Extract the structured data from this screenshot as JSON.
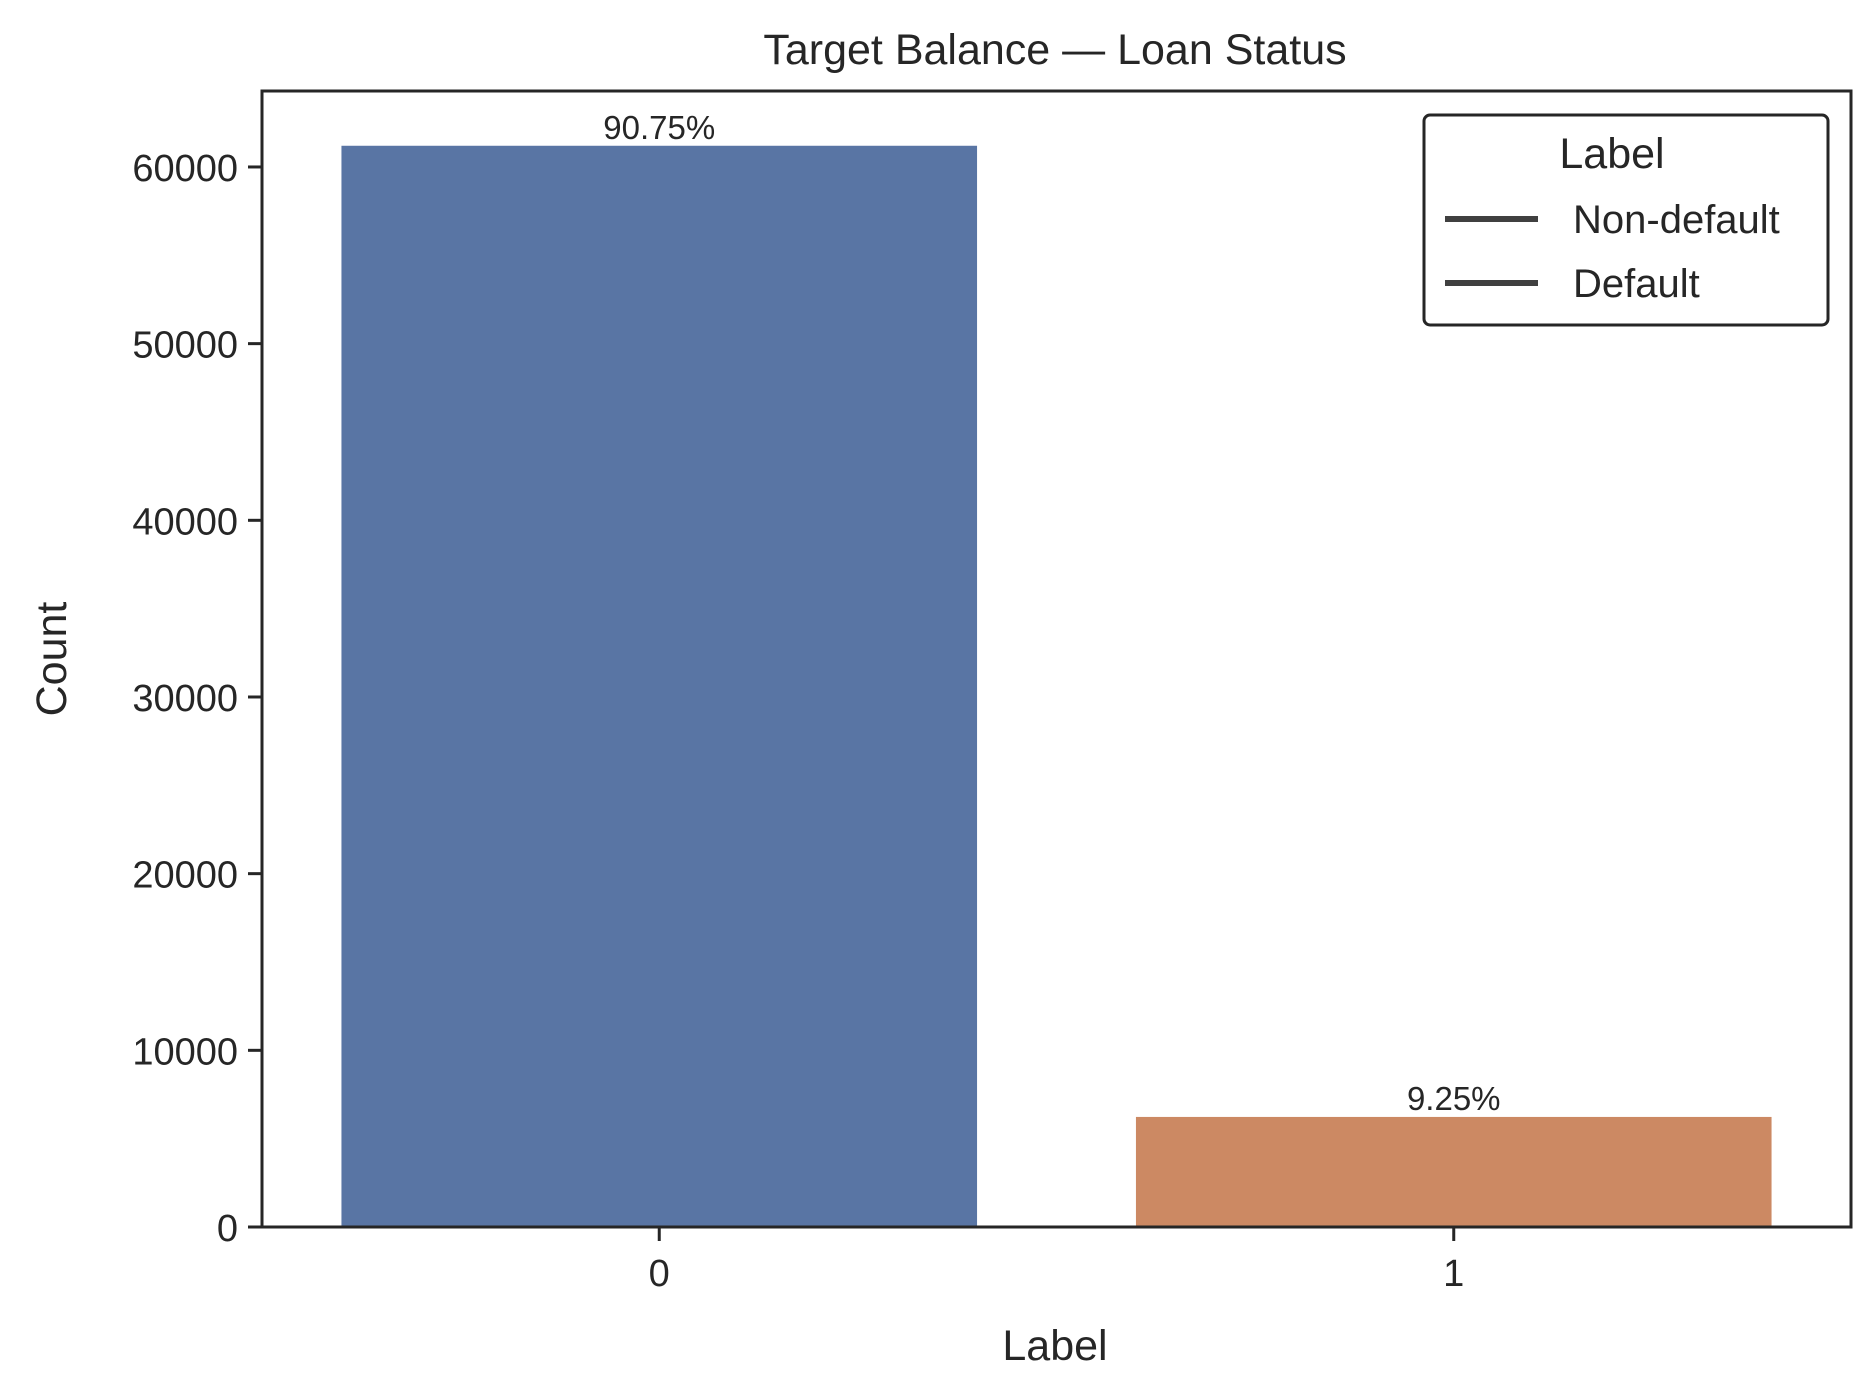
{
  "chart_data": {
    "type": "bar",
    "title": "Target Balance — Loan Status",
    "xlabel": "Label",
    "ylabel": "Count",
    "categories": [
      "0",
      "1"
    ],
    "values": [
      61200,
      6230
    ],
    "data_labels": [
      "90.75%",
      "9.25%"
    ],
    "colors": [
      "#5975a4",
      "#cc8963"
    ],
    "ylim": [
      0,
      64300
    ],
    "yticks": [
      0,
      10000,
      20000,
      30000,
      40000,
      50000,
      60000
    ],
    "grid": false,
    "legend": {
      "title": "Label",
      "placement": "top-right",
      "entries": [
        "Non-default",
        "Default"
      ],
      "line_color": "#404040"
    }
  }
}
